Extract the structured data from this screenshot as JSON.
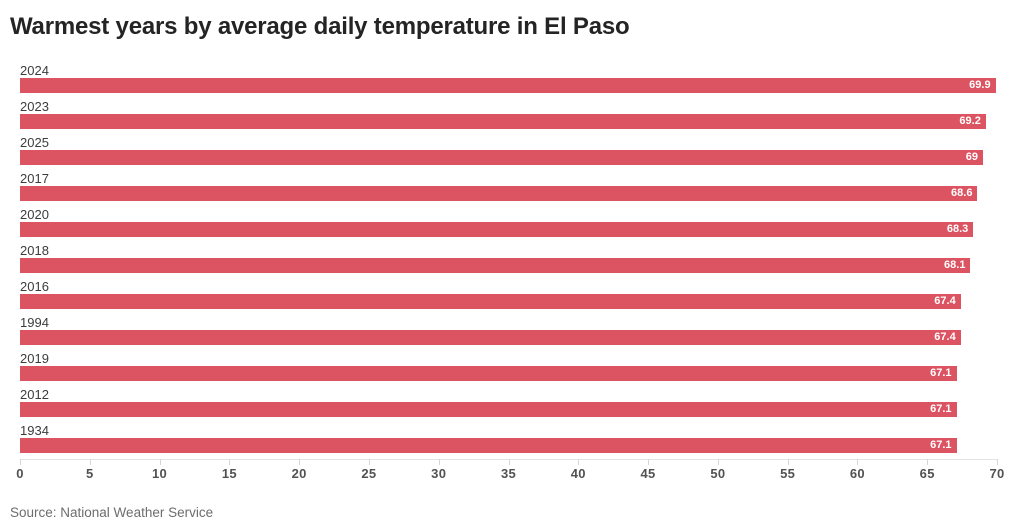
{
  "chart_data": {
    "type": "bar",
    "orientation": "horizontal",
    "title": "Warmest years by average daily temperature in El Paso",
    "categories": [
      "2024",
      "2023",
      "2025",
      "2017",
      "2020",
      "2018",
      "2016",
      "1994",
      "2019",
      "2012",
      "1934"
    ],
    "values": [
      69.9,
      69.2,
      69,
      68.6,
      68.3,
      68.1,
      67.4,
      67.4,
      67.1,
      67.1,
      67.1
    ],
    "value_labels": [
      "69.9",
      "69.2",
      "69",
      "68.6",
      "68.3",
      "68.1",
      "67.4",
      "67.4",
      "67.1",
      "67.1",
      "67.1"
    ],
    "xlabel": "",
    "ylabel": "",
    "xlim": [
      0,
      70
    ],
    "x_ticks": [
      0,
      5,
      10,
      15,
      20,
      25,
      30,
      35,
      40,
      45,
      50,
      55,
      60,
      65,
      70
    ],
    "grid": "ticks-below-axis-only",
    "legend": "none",
    "bar_color": "#dc5361",
    "value_label_color": "#ffffff",
    "source": "Source: National Weather Service"
  }
}
